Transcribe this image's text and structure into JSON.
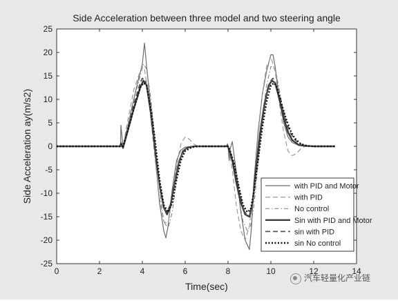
{
  "chart_data": {
    "type": "line",
    "title": "Side Acceleration between three model and two steering angle",
    "xlabel": "Time(sec)",
    "ylabel": "Side Acceleration ay(m/s2)",
    "xlim": [
      0,
      14
    ],
    "ylim": [
      -25,
      25
    ],
    "x_ticks": [
      0,
      2,
      4,
      6,
      8,
      10,
      12,
      14
    ],
    "y_ticks": [
      25,
      20,
      15,
      10,
      5,
      0,
      -5,
      -10,
      -15,
      -20,
      -25
    ],
    "grid": false,
    "legend_position": "bottom-right",
    "series": [
      {
        "name": "with PID and Motor",
        "style": "solid",
        "width": 1.2,
        "color": "#6a6a6a",
        "x": [
          0,
          2.98,
          3.0,
          3.1,
          3.2,
          3.5,
          3.8,
          4.0,
          4.1,
          4.2,
          4.4,
          4.6,
          4.8,
          5.0,
          5.1,
          5.2,
          5.4,
          5.6,
          5.8,
          6.0,
          6.3,
          6.6,
          7.0,
          7.9,
          7.98,
          8.0,
          8.05,
          8.1,
          8.2,
          8.4,
          8.6,
          8.8,
          9.0,
          9.1,
          9.2,
          9.4,
          9.6,
          9.8,
          10.0,
          10.1,
          10.2,
          10.4,
          10.6,
          10.8,
          11.0,
          11.3,
          11.6,
          12.0,
          13.0
        ],
        "y": [
          0,
          0,
          4.5,
          -0.5,
          1.5,
          8,
          14,
          17.5,
          22,
          17,
          8,
          -2,
          -12,
          -18,
          -19.5,
          -17,
          -9,
          -3,
          -0.8,
          -0.2,
          0,
          0,
          0,
          0,
          0.5,
          0,
          -3,
          -0.5,
          1,
          -6,
          -14,
          -20,
          -22,
          -17,
          -8,
          3,
          11,
          16,
          19.5,
          19.5,
          17,
          10,
          5,
          2,
          0.8,
          0.2,
          0,
          0,
          0
        ]
      },
      {
        "name": "with PID",
        "style": "dashed",
        "width": 1.2,
        "color": "#9a9a9a",
        "x": [
          0,
          2.98,
          3.0,
          3.1,
          3.3,
          3.6,
          3.9,
          4.0,
          4.1,
          4.3,
          4.6,
          4.8,
          5.0,
          5.2,
          5.4,
          5.6,
          5.8,
          6.0,
          6.2,
          6.4,
          6.6,
          7.0,
          8.0,
          8.05,
          8.2,
          8.4,
          8.6,
          8.8,
          9.0,
          9.2,
          9.4,
          9.6,
          9.8,
          10.0,
          10.2,
          10.4,
          10.6,
          10.8,
          11.0,
          11.2,
          11.4,
          11.6,
          12.0,
          13.0
        ],
        "y": [
          0,
          0,
          1,
          0,
          5,
          12,
          16,
          17,
          16.5,
          10,
          -3,
          -11,
          -16,
          -16.5,
          -11,
          -4,
          0.5,
          2,
          1.5,
          0.5,
          0,
          0,
          0,
          -1,
          -5,
          -13,
          -18,
          -20,
          -17,
          -9,
          2,
          11,
          17,
          19,
          16,
          9,
          3,
          -1,
          -2,
          -1.5,
          -0.5,
          0,
          0,
          0
        ]
      },
      {
        "name": "No control",
        "style": "dashdot",
        "width": 1.0,
        "color": "#7a7a7a",
        "x": [
          0,
          2.98,
          3.0,
          3.1,
          3.3,
          3.6,
          3.9,
          4.05,
          4.2,
          4.4,
          4.6,
          4.8,
          5.0,
          5.2,
          5.4,
          5.6,
          5.8,
          6.0,
          6.3,
          6.6,
          7.0,
          8.0,
          8.1,
          8.3,
          8.5,
          8.7,
          8.9,
          9.05,
          9.2,
          9.4,
          9.6,
          9.8,
          10.0,
          10.2,
          10.4,
          10.6,
          10.8,
          11.0,
          11.3,
          11.6,
          12.0,
          13.0
        ],
        "y": [
          0,
          0,
          0.8,
          0,
          4,
          10,
          15,
          17.5,
          16.5,
          10,
          1,
          -9,
          -16,
          -17.5,
          -14,
          -7,
          -2.5,
          -0.8,
          -0.1,
          0,
          0,
          0,
          -1,
          -5,
          -11,
          -16,
          -18,
          -17,
          -13,
          -4,
          6,
          13,
          17,
          16.5,
          12,
          7,
          3.5,
          1.5,
          0.4,
          0.1,
          0,
          0
        ]
      },
      {
        "name": "Sin with PID and Motor",
        "style": "solid",
        "width": 2.4,
        "color": "#3a3a3a",
        "x": [
          0,
          2.98,
          3.0,
          3.1,
          3.3,
          3.6,
          3.9,
          4.05,
          4.2,
          4.4,
          4.6,
          4.8,
          5.0,
          5.15,
          5.3,
          5.5,
          5.7,
          5.9,
          6.1,
          6.4,
          6.8,
          7.2,
          8.0,
          8.05,
          8.2,
          8.4,
          8.6,
          8.8,
          9.0,
          9.15,
          9.3,
          9.5,
          9.7,
          9.9,
          10.05,
          10.2,
          10.4,
          10.6,
          10.8,
          11.0,
          11.3,
          11.6,
          12.0,
          13.0
        ],
        "y": [
          0,
          0,
          0.5,
          -0.3,
          3,
          8,
          12.5,
          14,
          13,
          7,
          -1,
          -8,
          -13,
          -14.5,
          -13,
          -8,
          -3.5,
          -1,
          -0.3,
          0,
          0,
          0,
          0,
          -0.8,
          -3,
          -8,
          -12,
          -14.5,
          -15,
          -12,
          -5,
          3,
          9,
          13,
          14,
          13.5,
          10,
          6,
          3,
          1.3,
          0.3,
          0.1,
          0,
          0
        ]
      },
      {
        "name": "sin with PID",
        "style": "dashed",
        "width": 1.8,
        "color": "#555555",
        "x": [
          0,
          2.98,
          3.0,
          3.1,
          3.3,
          3.6,
          3.9,
          4.0,
          4.15,
          4.4,
          4.6,
          4.8,
          5.0,
          5.15,
          5.3,
          5.5,
          5.7,
          5.9,
          6.1,
          6.4,
          6.8,
          7.2,
          8.0,
          8.1,
          8.3,
          8.5,
          8.7,
          8.9,
          9.05,
          9.2,
          9.4,
          9.6,
          9.8,
          10.0,
          10.1,
          10.3,
          10.5,
          10.7,
          10.9,
          11.1,
          11.4,
          11.7,
          12.0,
          13.0
        ],
        "y": [
          0,
          0,
          0.5,
          0,
          3.5,
          9,
          13.5,
          14.5,
          14,
          7.5,
          -0.5,
          -8,
          -13,
          -14,
          -12.5,
          -8,
          -3.5,
          -1,
          -0.3,
          0,
          0,
          0,
          0,
          -1,
          -4,
          -9,
          -13,
          -15,
          -14.5,
          -10,
          -2,
          5,
          11,
          14,
          14.5,
          12.5,
          9,
          5.5,
          3,
          1.5,
          0.4,
          0.1,
          0,
          0
        ]
      },
      {
        "name": "sin No control",
        "style": "dotted",
        "width": 2.4,
        "color": "#111111",
        "x": [
          0,
          2.98,
          3.0,
          3.1,
          3.3,
          3.6,
          3.9,
          4.05,
          4.2,
          4.4,
          4.6,
          4.8,
          5.0,
          5.2,
          5.4,
          5.6,
          5.8,
          6.0,
          6.3,
          6.6,
          7.0,
          8.0,
          8.1,
          8.3,
          8.5,
          8.7,
          8.9,
          9.05,
          9.2,
          9.4,
          9.6,
          9.8,
          10.0,
          10.15,
          10.3,
          10.5,
          10.7,
          10.9,
          11.1,
          11.4,
          11.7,
          12.0,
          13.0
        ],
        "y": [
          0,
          0,
          0.5,
          0,
          3,
          8,
          12.5,
          13.5,
          13,
          8,
          1,
          -7,
          -12.5,
          -14,
          -12,
          -7,
          -3,
          -1,
          -0.2,
          0,
          0,
          0,
          -1,
          -4,
          -8.5,
          -12.5,
          -14,
          -13.5,
          -10,
          -3,
          4,
          9.5,
          13,
          13.5,
          12.5,
          9,
          6,
          3.5,
          1.8,
          0.5,
          0.1,
          0,
          0
        ]
      }
    ]
  },
  "watermark": {
    "text": "汽车轻量化产业链",
    "icon": "wechat-bubble-icon"
  }
}
